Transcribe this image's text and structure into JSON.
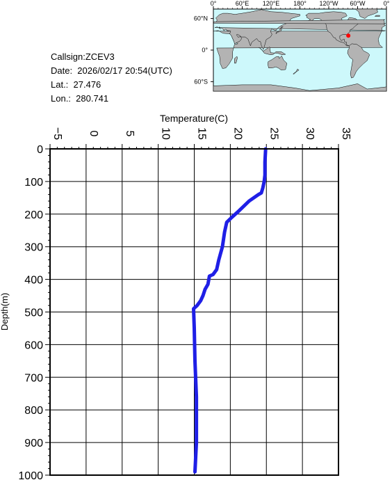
{
  "info": {
    "callsign": "Callsign:ZCEV3",
    "date": "Date:  2026/02/17 20:54(UTC)",
    "lat": "Lat.:  27.476",
    "lon": "Lon.:  280.741"
  },
  "map": {
    "lon_ticks": [
      "0°",
      "60°E",
      "120°E",
      "180°",
      "120°W",
      "60°W",
      "0°"
    ],
    "lat_ticks": [
      "60°N",
      "0°",
      "60°S"
    ],
    "marker": {
      "lon": 280.741,
      "lat": 27.476,
      "color": "#ff0000"
    },
    "ocean_color": "#cdf8fb",
    "land_color": "#b3b3b3"
  },
  "chart_data": {
    "type": "line",
    "title": "",
    "xlabel": "Temperature(C)",
    "ylabel": "Depth(m)",
    "xlim": [
      -5,
      35
    ],
    "ylim": [
      0,
      1000
    ],
    "y_inverted": true,
    "x_ticks": [
      "−5",
      "0",
      "5",
      "10",
      "15",
      "20",
      "25",
      "30",
      "35"
    ],
    "y_ticks": [
      "0",
      "100",
      "200",
      "300",
      "400",
      "500",
      "600",
      "700",
      "800",
      "900",
      "1000"
    ],
    "grid": true,
    "line_color": "#1f1fe6",
    "series": [
      {
        "x": [
          24.9,
          24.8,
          24.8,
          24.7,
          24.5,
          24.3,
          23.9,
          22.6,
          21.2,
          20.2,
          19.5,
          19.2,
          18.9,
          18.4,
          18.1,
          17.6,
          17.1,
          16.9,
          16.5,
          16.2,
          15.9,
          15.4,
          14.9,
          15.0,
          15.1,
          15.3,
          15.3,
          15.1
        ],
        "y": [
          0,
          40,
          80,
          100,
          120,
          135,
          140,
          160,
          190,
          210,
          225,
          255,
          300,
          340,
          370,
          385,
          390,
          415,
          430,
          450,
          465,
          480,
          490,
          550,
          650,
          760,
          900,
          990
        ]
      }
    ]
  }
}
